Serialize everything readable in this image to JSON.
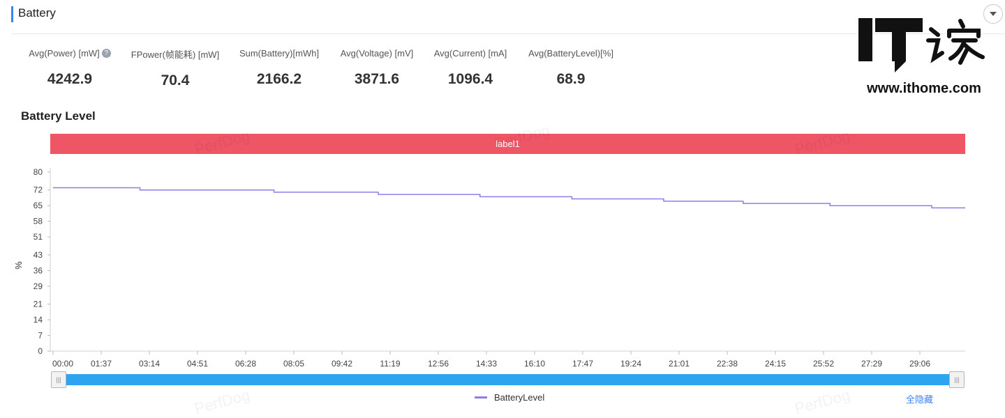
{
  "section": {
    "title": "Battery"
  },
  "stats": [
    {
      "label": "Avg(Power) [mW]",
      "value": "4242.9",
      "has_help": true
    },
    {
      "label": "FPower(帧能耗) [mW]",
      "value": "70.4"
    },
    {
      "label": "Sum(Battery)[mWh]",
      "value": "2166.2"
    },
    {
      "label": "Avg(Voltage) [mV]",
      "value": "3871.6"
    },
    {
      "label": "Avg(Current) [mA]",
      "value": "1096.4"
    },
    {
      "label": "Avg(BatteryLevel)[%]",
      "value": "68.9"
    }
  ],
  "logo": {
    "brand": "IT之家",
    "url": "www.ithome.com"
  },
  "watermark": "PerfDog",
  "band_label": "label1",
  "hide_all_label": "全隐藏",
  "icons": {
    "help": "question-circle-icon",
    "collapse": "chevron-down-icon",
    "slider": "grip-icon"
  },
  "colors": {
    "accent": "#3b82f6",
    "band": "#ee5666",
    "series": "#8a7fe8",
    "slider": "#2ea4f0"
  },
  "chart_data": {
    "type": "line",
    "title": "Battery Level",
    "ylabel": "%",
    "xlabel": "",
    "ylim": [
      0,
      80
    ],
    "y_ticks": [
      0,
      7,
      14,
      21,
      29,
      36,
      43,
      51,
      58,
      65,
      72,
      80
    ],
    "x_ticks": [
      "00:00",
      "01:37",
      "03:14",
      "04:51",
      "06:28",
      "08:05",
      "09:42",
      "11:19",
      "12:56",
      "14:33",
      "16:10",
      "17:47",
      "19:24",
      "21:01",
      "22:38",
      "24:15",
      "25:52",
      "27:29",
      "29:06"
    ],
    "legend_position": "bottom-center",
    "series": [
      {
        "name": "BatteryLevel",
        "step": true,
        "points": [
          [
            "00:00",
            73
          ],
          [
            "02:55",
            72
          ],
          [
            "07:25",
            71
          ],
          [
            "10:55",
            70
          ],
          [
            "14:20",
            69
          ],
          [
            "17:25",
            68
          ],
          [
            "20:30",
            67
          ],
          [
            "23:10",
            66
          ],
          [
            "26:05",
            65
          ],
          [
            "29:30",
            64
          ],
          [
            "30:40",
            64
          ]
        ]
      }
    ]
  }
}
